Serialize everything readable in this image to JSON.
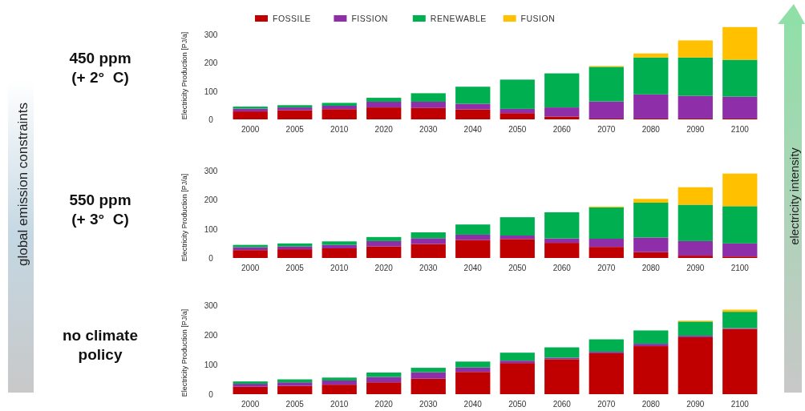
{
  "chart_data": [
    {
      "type": "bar",
      "stacked": true,
      "title": "450 ppm\n(+ 2°  C)",
      "ylabel": "Electricity Production [PJ/a]",
      "annotations": [
        "global emission constraints",
        "electricity intensity"
      ],
      "legend": "top",
      "grid": false,
      "ylim": [
        0,
        330
      ],
      "yticks": [
        0,
        100,
        200,
        300
      ],
      "categories": [
        "2000",
        "2005",
        "2010",
        "2020",
        "2030",
        "2040",
        "2050",
        "2060",
        "2070",
        "2080",
        "2090",
        "2100"
      ],
      "series": [
        {
          "name": "FOSSILE",
          "color": "#c00000",
          "values": [
            28,
            32,
            36,
            42,
            40,
            35,
            22,
            10,
            3,
            3,
            3,
            3
          ]
        },
        {
          "name": "FISSION",
          "color": "#8e2ea8",
          "values": [
            10,
            10,
            12,
            20,
            22,
            20,
            15,
            32,
            60,
            85,
            80,
            77
          ]
        },
        {
          "name": "RENEWABLE",
          "color": "#00b050",
          "values": [
            7,
            8,
            10,
            14,
            30,
            60,
            103,
            120,
            122,
            130,
            135,
            130
          ]
        },
        {
          "name": "FUSION",
          "color": "#ffc000",
          "values": [
            0,
            0,
            0,
            0,
            0,
            0,
            0,
            0,
            3,
            14,
            60,
            115
          ]
        }
      ]
    },
    {
      "type": "bar",
      "stacked": true,
      "title": "550 ppm\n(+ 3°  C)",
      "ylabel": "Electricity Production [PJ/a]",
      "legend": false,
      "grid": false,
      "ylim": [
        0,
        300
      ],
      "yticks": [
        0,
        100,
        200,
        300
      ],
      "categories": [
        "2000",
        "2005",
        "2010",
        "2020",
        "2030",
        "2040",
        "2050",
        "2060",
        "2070",
        "2080",
        "2090",
        "2100"
      ],
      "series": [
        {
          "color": "#c00000",
          "values": [
            27,
            30,
            33,
            40,
            48,
            62,
            65,
            52,
            38,
            20,
            8,
            5
          ]
        },
        {
          "color": "#8e2ea8",
          "values": [
            10,
            10,
            12,
            18,
            20,
            18,
            12,
            15,
            28,
            50,
            50,
            45
          ]
        },
        {
          "color": "#00b050",
          "values": [
            8,
            10,
            12,
            14,
            20,
            35,
            63,
            90,
            108,
            120,
            125,
            128
          ]
        },
        {
          "color": "#ffc000",
          "values": [
            0,
            0,
            0,
            0,
            0,
            0,
            0,
            0,
            3,
            13,
            60,
            112
          ]
        }
      ]
    },
    {
      "type": "bar",
      "stacked": true,
      "title": "no climate\npolicy",
      "ylabel": "Electricity Production [PJ/a]",
      "legend": false,
      "grid": false,
      "ylim": [
        0,
        300
      ],
      "yticks": [
        0,
        100,
        200,
        300
      ],
      "categories": [
        "2000",
        "2005",
        "2010",
        "2020",
        "2030",
        "2040",
        "2050",
        "2060",
        "2070",
        "2080",
        "2090",
        "2100"
      ],
      "series": [
        {
          "color": "#c00000",
          "values": [
            25,
            28,
            32,
            40,
            52,
            75,
            105,
            118,
            138,
            162,
            192,
            220
          ]
        },
        {
          "color": "#8e2ea8",
          "values": [
            10,
            12,
            14,
            18,
            22,
            15,
            8,
            5,
            5,
            8,
            5,
            3
          ]
        },
        {
          "color": "#00b050",
          "values": [
            8,
            10,
            10,
            15,
            15,
            20,
            27,
            35,
            42,
            45,
            48,
            55
          ]
        },
        {
          "color": "#ffc000",
          "values": [
            0,
            0,
            0,
            0,
            0,
            0,
            0,
            0,
            0,
            0,
            3,
            7
          ]
        }
      ]
    }
  ]
}
